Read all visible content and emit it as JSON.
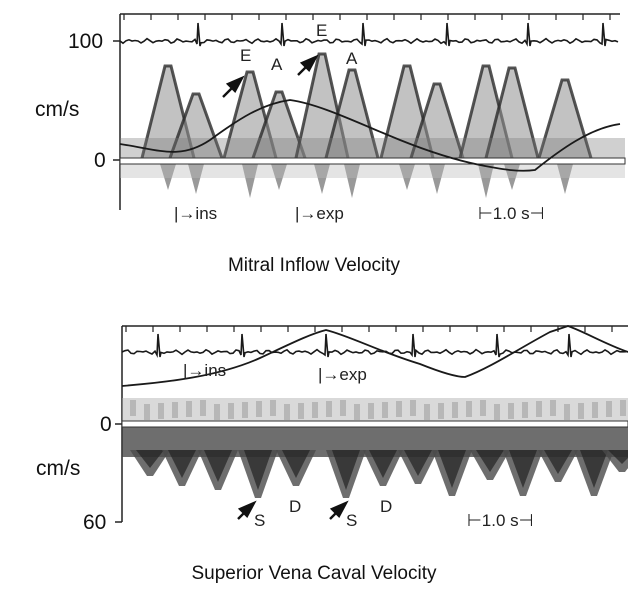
{
  "top": {
    "tick_100": "100",
    "unit": "cm/s",
    "tick_0": "0",
    "markers": {
      "E1": "E",
      "A1": "A",
      "E2": "E",
      "A2": "A",
      "ins": "|→ins",
      "exp": "|→exp",
      "scale": "⊢1.0 s⊣"
    },
    "caption": "Mitral Inflow Velocity"
  },
  "bottom": {
    "tick_0": "0",
    "unit": "cm/s",
    "tick_60": "60",
    "markers": {
      "ins": "|→ins",
      "exp": "|→exp",
      "S1": "S",
      "D1": "D",
      "S2": "S",
      "D2": "D",
      "scale": "⊢1.0 s⊣"
    },
    "caption": "Superior Vena Caval Velocity"
  },
  "colors": {
    "background": "#ffffff",
    "trace": "#1a1a1a",
    "doppler_envelope": "#3a3a3a",
    "doppler_fill": "#9a9a9a"
  }
}
